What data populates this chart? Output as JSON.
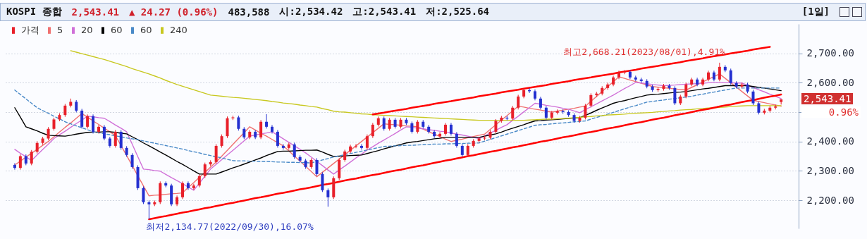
{
  "chart_data": {
    "type": "candlestick",
    "title": "KOSPI 종합",
    "annotations": [
      "2,543.41",
      "▲ 24.27 (0.96%)",
      "483,588",
      "시:2,534.42",
      "고:2,543.41",
      "저:2,525.64",
      "[1일]",
      "2,543.41",
      "0.96%",
      "최고2,668.21(2023/08/01),4.91%",
      "최저2,134.77(2022/09/30),16.07%"
    ],
    "categories": [
      null,
      null,
      null,
      null,
      null,
      null,
      null,
      null,
      null,
      null,
      null,
      null,
      null,
      null,
      null,
      null,
      null,
      null,
      null,
      null,
      null,
      null,
      null,
      null,
      null,
      null,
      null,
      null,
      null,
      null,
      null,
      null,
      null,
      null,
      null,
      null,
      null,
      null,
      null,
      null,
      null,
      null,
      null,
      null,
      null,
      null,
      null,
      null,
      null,
      null,
      null,
      null,
      null,
      null,
      null,
      null,
      null,
      null,
      null,
      null,
      null,
      null,
      null,
      null,
      null,
      null,
      null,
      null,
      null,
      null,
      null,
      null,
      null,
      null,
      null,
      null,
      null,
      null,
      null,
      null,
      null,
      null,
      null,
      null,
      null,
      null,
      null,
      null,
      null,
      null,
      null,
      null,
      null,
      null,
      null,
      null,
      null,
      null,
      null,
      null,
      null,
      null,
      null,
      null,
      null,
      null,
      null,
      null,
      null,
      null,
      null,
      null,
      null,
      null,
      null,
      null,
      null,
      null,
      null,
      null,
      null,
      null,
      null,
      null,
      null,
      null,
      null,
      null,
      null,
      null,
      null,
      null,
      null,
      null,
      null,
      null,
      null,
      null
    ],
    "ylim": [
      2104,
      2800
    ],
    "yticks": [
      {
        "value": 2200,
        "label": "2,200.00"
      },
      {
        "value": 2300,
        "label": "2,300.00"
      },
      {
        "value": 2400,
        "label": "2,400.00"
      },
      {
        "value": 2500,
        "label": null
      },
      {
        "value": 2600,
        "label": "2,600.00"
      },
      {
        "value": 2700,
        "label": "2,700.00"
      }
    ],
    "grid": "y",
    "legend": "top left",
    "tick_labels": "y",
    "series": [
      {
        "name": "가격",
        "color": "#e8202a",
        "colors": [
          "#2430d0",
          "#e8202a",
          "#2430d0",
          "#e8202a",
          "#e8202a",
          "#e8202a",
          "#e8202a",
          "#e8202a",
          "#e8202a",
          "#e8202a",
          "#e8202a",
          "#2430d0",
          "#2430d0",
          "#e8202a",
          "#2430d0",
          "#e8202a",
          "#2430d0",
          "#2430d0",
          "#e8202a",
          "#2430d0",
          "#2430d0",
          "#2430d0",
          "#2430d0",
          "#2430d0",
          "#2430d0",
          "#e8202a",
          "#e8202a",
          "#2430d0",
          "#2430d0",
          "#e8202a",
          "#e8202a",
          "#2430d0",
          "#e8202a",
          "#e8202a",
          "#e8202a",
          "#e8202a",
          "#e8202a",
          "#e8202a",
          "#e8202a",
          "#e8202a",
          "#2430d0",
          "#2430d0",
          "#e8202a",
          "#2430d0",
          "#e8202a",
          "#2430d0",
          "#2430d0",
          "#2430d0",
          "#2430d0",
          "#e8202a",
          "#2430d0",
          "#2430d0",
          "#2430d0",
          "#e8202a",
          "#2430d0",
          "#2430d0",
          "#2430d0",
          "#e8202a",
          "#e8202a",
          "#e8202a",
          "#e8202a",
          "#e8202a",
          "#2430d0",
          "#e8202a",
          "#e8202a",
          "#e8202a",
          "#2430d0",
          "#e8202a",
          "#2430d0",
          "#e8202a",
          "#2430d0",
          "#2430d0",
          "#e8202a",
          "#2430d0",
          "#2430d0",
          "#2430d0",
          "#e8202a",
          "#e8202a",
          "#2430d0",
          "#2430d0",
          "#2430d0",
          "#e8202a",
          "#e8202a",
          "#e8202a",
          "#e8202a",
          "#e8202a",
          "#e8202a",
          "#e8202a",
          "#2430d0",
          "#e8202a",
          "#e8202a",
          "#e8202a",
          "#2430d0",
          "#2430d0",
          "#2430d0",
          "#2430d0",
          "#e8202a",
          "#e8202a",
          "#2430d0",
          "#2430d0",
          "#2430d0",
          "#e8202a",
          "#e8202a",
          "#e8202a",
          "#e8202a",
          "#e8202a",
          "#e8202a",
          "#e8202a",
          "#e8202a",
          "#e8202a",
          "#2430d0",
          "#2430d0",
          "#2430d0",
          "#2430d0",
          "#2430d0",
          "#e8202a",
          "#e8202a",
          "#2430d0",
          "#2430d0",
          "#e8202a",
          "#e8202a",
          "#e8202a",
          "#2430d0",
          "#e8202a",
          "#e8202a",
          "#2430d0",
          "#e8202a",
          "#2430d0",
          "#2430d0",
          "#2430d0",
          "#e8202a",
          "#2430d0",
          "#2430d0",
          "#2430d0",
          "#e8202a",
          "#e8202a",
          "#e8202a",
          "#e8202a"
        ],
        "ohlc": [
          [
            2320,
            2326,
            2304,
            2310
          ],
          [
            2310,
            2356,
            2304,
            2350
          ],
          [
            2350,
            2356,
            2319,
            2325
          ],
          [
            2325,
            2371,
            2319,
            2365
          ],
          [
            2365,
            2401,
            2359,
            2395
          ],
          [
            2395,
            2416,
            2389,
            2410
          ],
          [
            2410,
            2449,
            2404,
            2443
          ],
          [
            2443,
            2481,
            2437,
            2475
          ],
          [
            2475,
            2496,
            2469,
            2490
          ],
          [
            2490,
            2528,
            2484,
            2522
          ],
          [
            2522,
            2546,
            2516,
            2535
          ],
          [
            2535,
            2541,
            2499,
            2505
          ],
          [
            2505,
            2511,
            2444,
            2450
          ],
          [
            2450,
            2492,
            2444,
            2486
          ],
          [
            2486,
            2492,
            2427,
            2433
          ],
          [
            2433,
            2456,
            2427,
            2450
          ],
          [
            2450,
            2456,
            2404,
            2410
          ],
          [
            2410,
            2416,
            2379,
            2385
          ],
          [
            2385,
            2439,
            2379,
            2433
          ],
          [
            2433,
            2439,
            2372,
            2378
          ],
          [
            2378,
            2384,
            2348,
            2354
          ],
          [
            2354,
            2360,
            2307,
            2313
          ],
          [
            2313,
            2319,
            2235,
            2241
          ],
          [
            2241,
            2247,
            2187,
            2193
          ],
          [
            2193,
            2199,
            2134.77,
            2186
          ],
          [
            2186,
            2199,
            2180,
            2193
          ],
          [
            2193,
            2264,
            2187,
            2258
          ],
          [
            2258,
            2264,
            2244,
            2250
          ],
          [
            2250,
            2256,
            2180,
            2186
          ],
          [
            2186,
            2216,
            2180,
            2210
          ],
          [
            2210,
            2264,
            2204,
            2258
          ],
          [
            2258,
            2264,
            2235,
            2241
          ],
          [
            2241,
            2256,
            2235,
            2250
          ],
          [
            2250,
            2288,
            2244,
            2282
          ],
          [
            2282,
            2328,
            2276,
            2322
          ],
          [
            2322,
            2336,
            2316,
            2330
          ],
          [
            2330,
            2391,
            2324,
            2385
          ],
          [
            2385,
            2424,
            2379,
            2418
          ],
          [
            2418,
            2485,
            2412,
            2479
          ],
          [
            2479,
            2488,
            2473,
            2482
          ],
          [
            2482,
            2488,
            2437,
            2443
          ],
          [
            2443,
            2449,
            2408,
            2414
          ],
          [
            2414,
            2439,
            2408,
            2433
          ],
          [
            2433,
            2439,
            2408,
            2414
          ],
          [
            2414,
            2473,
            2408,
            2467
          ],
          [
            2467,
            2493,
            2444,
            2450
          ],
          [
            2450,
            2456,
            2427,
            2433
          ],
          [
            2433,
            2439,
            2379,
            2385
          ],
          [
            2385,
            2391,
            2372,
            2378
          ],
          [
            2378,
            2396,
            2372,
            2390
          ],
          [
            2390,
            2396,
            2341,
            2347
          ],
          [
            2347,
            2353,
            2329,
            2335
          ],
          [
            2335,
            2341,
            2307,
            2313
          ],
          [
            2313,
            2343,
            2307,
            2337
          ],
          [
            2337,
            2343,
            2283,
            2289
          ],
          [
            2289,
            2295,
            2228,
            2234
          ],
          [
            2234,
            2240,
            2178,
            2210
          ],
          [
            2210,
            2281,
            2204,
            2275
          ],
          [
            2275,
            2343,
            2269,
            2337
          ],
          [
            2337,
            2372,
            2331,
            2366
          ],
          [
            2366,
            2389,
            2360,
            2383
          ],
          [
            2383,
            2391,
            2377,
            2385
          ],
          [
            2385,
            2391,
            2372,
            2378
          ],
          [
            2378,
            2424,
            2372,
            2418
          ],
          [
            2418,
            2463,
            2412,
            2457
          ],
          [
            2457,
            2485,
            2451,
            2479
          ],
          [
            2479,
            2485,
            2437,
            2443
          ],
          [
            2443,
            2480,
            2437,
            2474
          ],
          [
            2474,
            2480,
            2444,
            2450
          ],
          [
            2450,
            2480,
            2444,
            2474
          ],
          [
            2474,
            2480,
            2456,
            2462
          ],
          [
            2462,
            2468,
            2427,
            2433
          ],
          [
            2433,
            2473,
            2427,
            2467
          ],
          [
            2467,
            2473,
            2444,
            2450
          ],
          [
            2450,
            2456,
            2427,
            2433
          ],
          [
            2433,
            2439,
            2412,
            2418
          ],
          [
            2418,
            2432,
            2412,
            2426
          ],
          [
            2426,
            2463,
            2420,
            2457
          ],
          [
            2457,
            2463,
            2420,
            2426
          ],
          [
            2426,
            2432,
            2379,
            2385
          ],
          [
            2385,
            2391,
            2348,
            2354
          ],
          [
            2354,
            2391,
            2348,
            2385
          ],
          [
            2385,
            2408,
            2379,
            2402
          ],
          [
            2402,
            2416,
            2396,
            2410
          ],
          [
            2410,
            2419,
            2404,
            2413
          ],
          [
            2413,
            2439,
            2407,
            2433
          ],
          [
            2433,
            2476,
            2427,
            2470
          ],
          [
            2470,
            2487,
            2464,
            2481
          ],
          [
            2481,
            2487,
            2472,
            2478
          ],
          [
            2478,
            2521,
            2472,
            2515
          ],
          [
            2515,
            2559,
            2509,
            2553
          ],
          [
            2553,
            2581,
            2547,
            2575
          ],
          [
            2575,
            2581,
            2565,
            2571
          ],
          [
            2571,
            2577,
            2540,
            2546
          ],
          [
            2546,
            2552,
            2509,
            2515
          ],
          [
            2515,
            2521,
            2475,
            2481
          ],
          [
            2481,
            2504,
            2475,
            2498
          ],
          [
            2498,
            2509,
            2492,
            2503
          ],
          [
            2503,
            2509,
            2494,
            2500
          ],
          [
            2500,
            2506,
            2484,
            2490
          ],
          [
            2490,
            2496,
            2464,
            2470
          ],
          [
            2470,
            2487,
            2464,
            2481
          ],
          [
            2481,
            2528,
            2475,
            2522
          ],
          [
            2522,
            2564,
            2516,
            2558
          ],
          [
            2558,
            2569,
            2552,
            2563
          ],
          [
            2563,
            2588,
            2557,
            2582
          ],
          [
            2582,
            2600,
            2576,
            2594
          ],
          [
            2594,
            2624,
            2588,
            2618
          ],
          [
            2618,
            2641,
            2612,
            2635
          ],
          [
            2635,
            2643,
            2629,
            2637
          ],
          [
            2637,
            2643,
            2612,
            2618
          ],
          [
            2618,
            2624,
            2605,
            2611
          ],
          [
            2611,
            2617,
            2600,
            2606
          ],
          [
            2606,
            2612,
            2581,
            2587
          ],
          [
            2587,
            2593,
            2569,
            2575
          ],
          [
            2575,
            2585,
            2569,
            2579
          ],
          [
            2579,
            2596,
            2573,
            2590
          ],
          [
            2590,
            2596,
            2576,
            2582
          ],
          [
            2582,
            2588,
            2524,
            2530
          ],
          [
            2530,
            2559,
            2524,
            2553
          ],
          [
            2553,
            2600,
            2547,
            2594
          ],
          [
            2594,
            2617,
            2588,
            2611
          ],
          [
            2611,
            2617,
            2588,
            2594
          ],
          [
            2594,
            2617,
            2588,
            2611
          ],
          [
            2611,
            2641,
            2605,
            2635
          ],
          [
            2635,
            2641,
            2605,
            2611
          ],
          [
            2611,
            2668.21,
            2605,
            2654
          ],
          [
            2654,
            2660,
            2636,
            2642
          ],
          [
            2642,
            2648,
            2593,
            2599
          ],
          [
            2599,
            2605,
            2581,
            2587
          ],
          [
            2587,
            2600,
            2581,
            2594
          ],
          [
            2594,
            2600,
            2564,
            2570
          ],
          [
            2570,
            2576,
            2524,
            2530
          ],
          [
            2530,
            2536,
            2492,
            2498
          ],
          [
            2498,
            2511,
            2492,
            2505
          ],
          [
            2505,
            2521,
            2499,
            2515
          ],
          [
            2515,
            2525,
            2509,
            2519.14
          ],
          [
            2534.42,
            2543.41,
            2525.64,
            2543.41
          ]
        ]
      },
      {
        "type": "line",
        "name": "5",
        "color": "#f07070",
        "values": [
          2320,
          2333,
          2347,
          2360,
          2373,
          2387,
          2400,
          2416,
          2432,
          2448,
          2463,
          2479,
          2495,
          2483,
          2470,
          2458,
          2445,
          2433,
          2420,
          2386,
          2352,
          2318,
          2283,
          2249,
          2215,
          2217,
          2218,
          2220,
          2222,
          2223,
          2225,
          2243,
          2260,
          2278,
          2295,
          2313,
          2330,
          2350,
          2370,
          2390,
          2410,
          2430,
          2450,
          2439,
          2428,
          2418,
          2407,
          2396,
          2385,
          2368,
          2350,
          2333,
          2315,
          2298,
          2280,
          2295,
          2310,
          2325,
          2340,
          2355,
          2370,
          2385,
          2400,
          2415,
          2430,
          2445,
          2460,
          2458,
          2457,
          2455,
          2453,
          2452,
          2450,
          2442,
          2433,
          2425,
          2417,
          2408,
          2400,
          2404,
          2408,
          2413,
          2417,
          2421,
          2425,
          2441,
          2457,
          2473,
          2488,
          2504,
          2520,
          2517,
          2513,
          2510,
          2507,
          2503,
          2500,
          2503,
          2507,
          2510,
          2513,
          2517,
          2520,
          2537,
          2553,
          2570,
          2587,
          2603,
          2620,
          2615,
          2609,
          2604,
          2598,
          2593,
          2587,
          2585,
          2583,
          2581,
          2579,
          2577,
          2575,
          2584,
          2593,
          2603,
          2612,
          2621,
          2630,
          2615,
          2600,
          2585,
          2570,
          2555,
          2540,
          2536,
          2532,
          2528,
          2524,
          2520
        ]
      },
      {
        "type": "line",
        "name": "20",
        "color": "#d070d8",
        "values": [
          2373,
          2360,
          2348,
          2335,
          2354,
          2373,
          2391,
          2410,
          2423,
          2435,
          2448,
          2461,
          2473,
          2486,
          2484,
          2481,
          2479,
          2468,
          2456,
          2445,
          2433,
          2391,
          2348,
          2306,
          2304,
          2301,
          2299,
          2288,
          2277,
          2267,
          2256,
          2245,
          2234,
          2258,
          2282,
          2306,
          2322,
          2338,
          2354,
          2370,
          2386,
          2402,
          2418,
          2422,
          2426,
          2429,
          2433,
          2421,
          2409,
          2397,
          2385,
          2373,
          2361,
          2347,
          2332,
          2318,
          2303,
          2289,
          2303,
          2316,
          2330,
          2344,
          2357,
          2371,
          2382,
          2394,
          2405,
          2416,
          2427,
          2439,
          2450,
          2448,
          2445,
          2443,
          2440,
          2438,
          2435,
          2433,
          2429,
          2425,
          2422,
          2418,
          2414,
          2410,
          2419,
          2429,
          2438,
          2448,
          2457,
          2472,
          2486,
          2501,
          2515,
          2530,
          2527,
          2523,
          2520,
          2517,
          2513,
          2510,
          2504,
          2498,
          2508,
          2518,
          2528,
          2538,
          2548,
          2558,
          2569,
          2580,
          2590,
          2601,
          2599,
          2597,
          2594,
          2592,
          2590,
          2591,
          2592,
          2594,
          2595,
          2596,
          2597,
          2598,
          2600,
          2601,
          2601,
          2600,
          2600,
          2599,
          2599,
          2591,
          2584,
          2576,
          2569,
          2561,
          2554,
          2546
        ]
      },
      {
        "type": "line",
        "name": "60",
        "color": "#000000",
        "values": [
          2515,
          2483,
          2450,
          2443,
          2436,
          2428,
          2421,
          2420,
          2419,
          2418,
          2421,
          2425,
          2428,
          2431,
          2432,
          2432,
          2433,
          2433,
          2431,
          2428,
          2426,
          2416,
          2406,
          2395,
          2385,
          2375,
          2364,
          2354,
          2343,
          2332,
          2322,
          2311,
          2300,
          2289,
          2289,
          2289,
          2289,
          2296,
          2303,
          2310,
          2316,
          2323,
          2330,
          2337,
          2344,
          2352,
          2359,
          2366,
          2367,
          2367,
          2368,
          2369,
          2370,
          2370,
          2371,
          2364,
          2356,
          2349,
          2350,
          2351,
          2352,
          2353,
          2354,
          2359,
          2364,
          2369,
          2375,
          2380,
          2385,
          2390,
          2395,
          2398,
          2400,
          2403,
          2406,
          2409,
          2411,
          2414,
          2414,
          2414,
          2414,
          2414,
          2414,
          2414,
          2418,
          2422,
          2426,
          2432,
          2439,
          2445,
          2451,
          2457,
          2464,
          2470,
          2471,
          2473,
          2474,
          2475,
          2477,
          2478,
          2480,
          2481,
          2489,
          2497,
          2506,
          2514,
          2522,
          2530,
          2535,
          2539,
          2544,
          2549,
          2553,
          2558,
          2560,
          2561,
          2563,
          2565,
          2567,
          2568,
          2570,
          2573,
          2576,
          2579,
          2581,
          2584,
          2587,
          2590,
          2590,
          2590,
          2590,
          2590,
          2587,
          2584,
          2582,
          2579,
          2576,
          2573
        ]
      },
      {
        "type": "line",
        "name": "60",
        "color": "#4a8ac8",
        "line_style": "dashed",
        "values": [
          2575,
          2560,
          2545,
          2530,
          2515,
          2505,
          2496,
          2486,
          2477,
          2467,
          2460,
          2453,
          2447,
          2440,
          2433,
          2430,
          2426,
          2423,
          2419,
          2416,
          2412,
          2409,
          2406,
          2402,
          2398,
          2394,
          2390,
          2386,
          2382,
          2378,
          2374,
          2369,
          2365,
          2361,
          2356,
          2352,
          2348,
          2344,
          2339,
          2335,
          2334,
          2334,
          2333,
          2333,
          2332,
          2332,
          2331,
          2330,
          2330,
          2329,
          2329,
          2328,
          2328,
          2327,
          2332,
          2337,
          2342,
          2347,
          2351,
          2355,
          2359,
          2363,
          2367,
          2371,
          2375,
          2379,
          2383,
          2384,
          2385,
          2386,
          2387,
          2387,
          2388,
          2389,
          2390,
          2391,
          2391,
          2392,
          2392,
          2393,
          2393,
          2394,
          2394,
          2395,
          2401,
          2407,
          2413,
          2419,
          2425,
          2431,
          2437,
          2443,
          2449,
          2455,
          2457,
          2458,
          2460,
          2462,
          2463,
          2465,
          2467,
          2468,
          2470,
          2476,
          2482,
          2487,
          2493,
          2499,
          2505,
          2511,
          2517,
          2522,
          2528,
          2534,
          2536,
          2539,
          2541,
          2544,
          2546,
          2549,
          2551,
          2554,
          2558,
          2561,
          2565,
          2568,
          2572,
          2575,
          2579,
          2582,
          2582,
          2582,
          2582,
          2582,
          2582,
          2582,
          2582,
          2582
        ]
      },
      {
        "type": "line",
        "name": "240",
        "color": "#c8c820",
        "values": [
          null,
          null,
          null,
          null,
          null,
          null,
          null,
          null,
          null,
          null,
          2709,
          2704,
          2699,
          2694,
          2689,
          2684,
          2679,
          2673,
          2667,
          2661,
          2655,
          2648,
          2642,
          2636,
          2630,
          2623,
          2616,
          2608,
          2601,
          2594,
          2588,
          2582,
          2576,
          2570,
          2564,
          2558,
          2556,
          2554,
          2552,
          2550,
          2549,
          2547,
          2545,
          2543,
          2541,
          2539,
          2536,
          2534,
          2531,
          2529,
          2527,
          2524,
          2522,
          2519,
          2517,
          2512,
          2508,
          2503,
          2501,
          2500,
          2498,
          2496,
          2494,
          2493,
          2491,
          2490,
          2489,
          2488,
          2487,
          2486,
          2485,
          2484,
          2483,
          2482,
          2481,
          2480,
          2479,
          2478,
          2477,
          2476,
          2475,
          2474,
          2473,
          2472,
          2472,
          2472,
          2472,
          2472,
          2472,
          2472,
          2472,
          2472,
          2473,
          2474,
          2475,
          2476,
          2476,
          2477,
          2478,
          2479,
          2481,
          2482,
          2484,
          2485,
          2487,
          2488,
          2490,
          2491,
          2492,
          2493,
          2495,
          2496,
          2497,
          2498,
          2499,
          2501,
          2502,
          2504,
          2505,
          2507,
          2508,
          2509,
          2511,
          2512,
          2514,
          2515,
          2516,
          2517,
          2519,
          2520,
          2521,
          2522,
          2522,
          2522,
          2522,
          2522,
          2522,
          2522
        ]
      },
      {
        "type": "line",
        "color": "#ff0000",
        "values": [
          null,
          null,
          null,
          null,
          null,
          null,
          null,
          null,
          null,
          null,
          null,
          null,
          null,
          null,
          null,
          null,
          null,
          null,
          null,
          null,
          null,
          null,
          null,
          null,
          null,
          null,
          null,
          null,
          null,
          null,
          null,
          null,
          null,
          null,
          null,
          null,
          null,
          null,
          null,
          null,
          null,
          null,
          null,
          null,
          null,
          null,
          null,
          null,
          null,
          null,
          null,
          null,
          null,
          null,
          null,
          null,
          null,
          null,
          null,
          null,
          null,
          null,
          null,
          null,
          2492,
          2495,
          2498,
          2502,
          2505,
          2508,
          2511,
          2515,
          2518,
          2521,
          2524,
          2528,
          2531,
          2534,
          2537,
          2541,
          2544,
          2547,
          2550,
          2554,
          2557,
          2560,
          2563,
          2567,
          2570,
          2573,
          2576,
          2580,
          2583,
          2586,
          2589,
          2592,
          2596,
          2599,
          2602,
          2605,
          2609,
          2612,
          2615,
          2618,
          2622,
          2625,
          2628,
          2631,
          2635,
          2638,
          2641,
          2644,
          2648,
          2651,
          2654,
          2657,
          2661,
          2664,
          2667,
          2670,
          2674,
          2677,
          2680,
          2683,
          2687,
          2690,
          2693,
          2696,
          2700,
          2703,
          2706,
          2709,
          2713,
          2716,
          2719,
          2722,
          null,
          null
        ]
      },
      {
        "type": "line",
        "color": "#ff0000",
        "values": [
          null,
          null,
          null,
          null,
          null,
          null,
          null,
          null,
          null,
          null,
          null,
          null,
          null,
          null,
          null,
          null,
          null,
          null,
          null,
          null,
          null,
          null,
          null,
          null,
          2135,
          2139,
          2143,
          2146,
          2150,
          2154,
          2158,
          2161,
          2165,
          2169,
          2173,
          2176,
          2180,
          2184,
          2188,
          2191,
          2195,
          2199,
          2203,
          2207,
          2210,
          2214,
          2218,
          2222,
          2225,
          2229,
          2233,
          2237,
          2240,
          2244,
          2248,
          2252,
          2255,
          2259,
          2263,
          2267,
          2271,
          2274,
          2278,
          2282,
          2286,
          2289,
          2293,
          2297,
          2301,
          2304,
          2308,
          2312,
          2316,
          2319,
          2323,
          2327,
          2331,
          2335,
          2338,
          2342,
          2346,
          2350,
          2353,
          2357,
          2361,
          2365,
          2368,
          2372,
          2376,
          2380,
          2383,
          2387,
          2391,
          2395,
          2399,
          2402,
          2406,
          2410,
          2414,
          2417,
          2421,
          2425,
          2429,
          2432,
          2436,
          2440,
          2444,
          2447,
          2451,
          2455,
          2459,
          2463,
          2466,
          2470,
          2474,
          2478,
          2481,
          2485,
          2489,
          2493,
          2496,
          2500,
          2504,
          2508,
          2511,
          2515,
          2519,
          2523,
          2526,
          2530,
          2534,
          2538,
          2541,
          2545,
          2549,
          2553,
          2556,
          2560
        ]
      }
    ]
  }
}
